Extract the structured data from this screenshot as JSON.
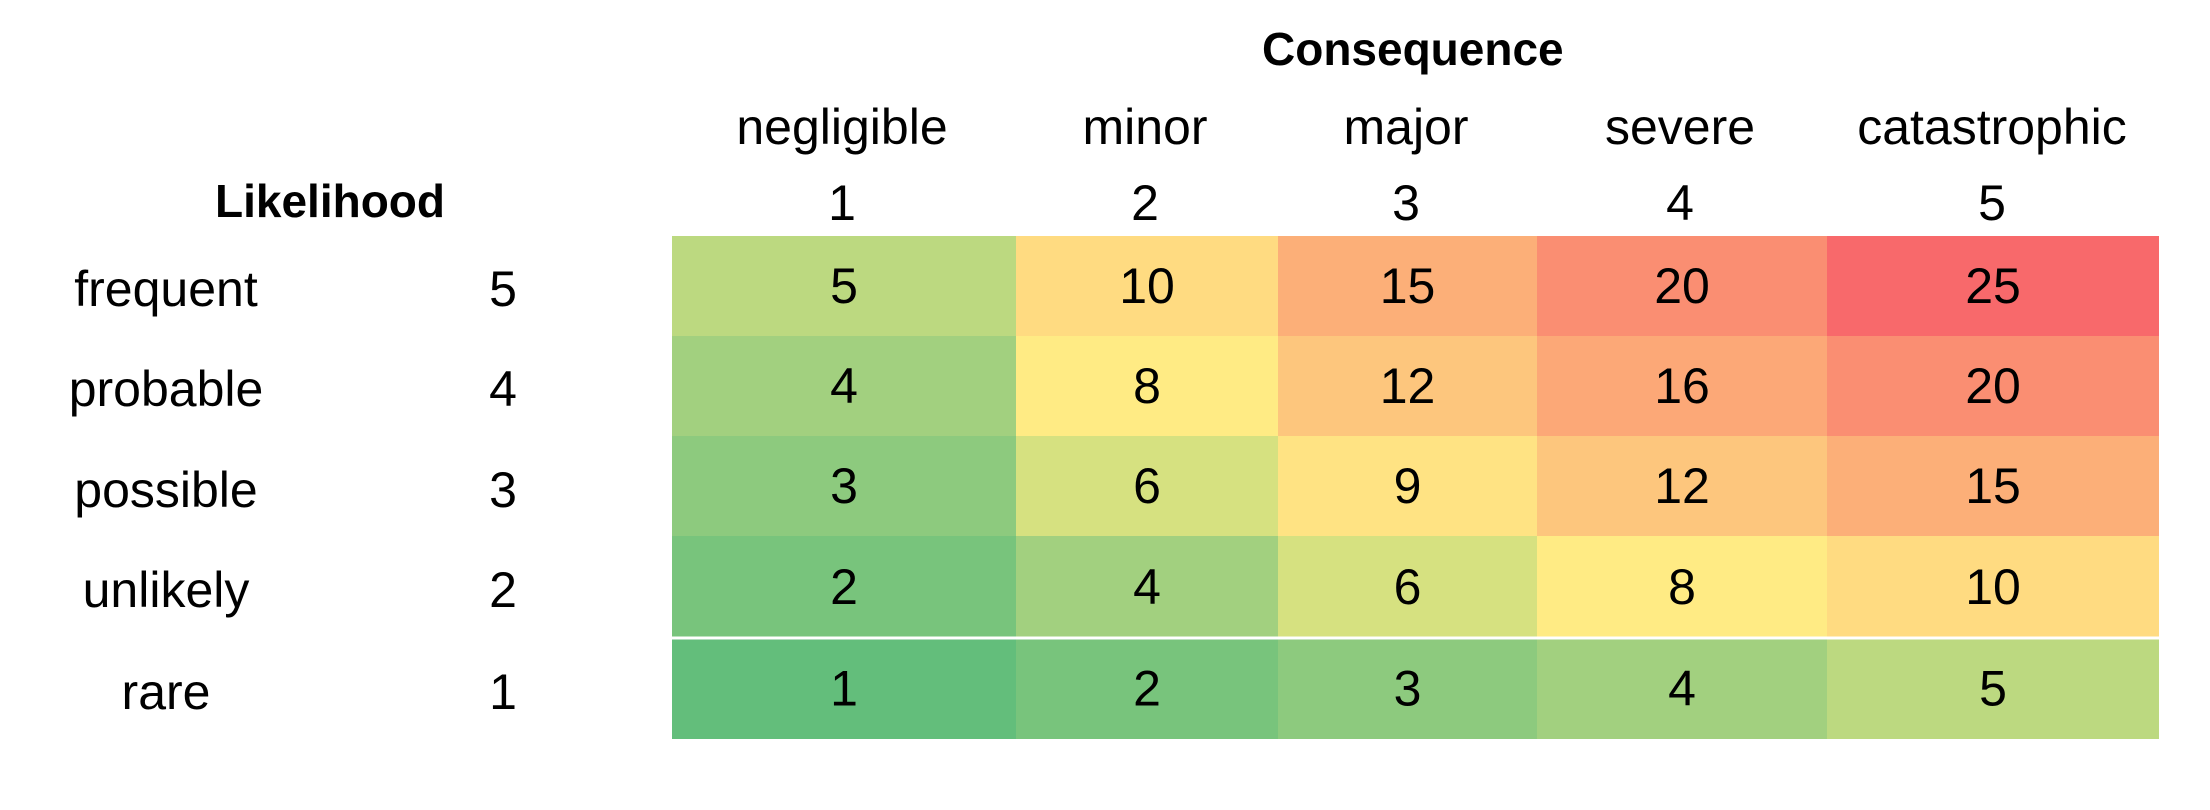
{
  "chart_data": {
    "type": "heatmap",
    "title": "Consequence",
    "row_title": "Likelihood",
    "columns": [
      {
        "name": "negligible",
        "value": "1"
      },
      {
        "name": "minor",
        "value": "2"
      },
      {
        "name": "major",
        "value": "3"
      },
      {
        "name": "severe",
        "value": "4"
      },
      {
        "name": "catastrophic",
        "value": "5"
      }
    ],
    "rows": [
      {
        "name": "frequent",
        "value": "5",
        "cells": [
          5,
          10,
          15,
          20,
          25
        ]
      },
      {
        "name": "probable",
        "value": "4",
        "cells": [
          4,
          8,
          12,
          16,
          20
        ]
      },
      {
        "name": "possible",
        "value": "3",
        "cells": [
          3,
          6,
          9,
          12,
          15
        ]
      },
      {
        "name": "unlikely",
        "value": "2",
        "cells": [
          2,
          4,
          6,
          8,
          10
        ]
      },
      {
        "name": "rare",
        "value": "1",
        "cells": [
          1,
          2,
          3,
          4,
          5
        ]
      }
    ],
    "color_scale": {
      "min": 1,
      "max": 25,
      "stops": [
        {
          "value": 1,
          "color": "#63BE7B"
        },
        {
          "value": 4,
          "color": "#A2D07F"
        },
        {
          "value": 6,
          "color": "#D6E180"
        },
        {
          "value": 8,
          "color": "#FFEB84"
        },
        {
          "value": 10,
          "color": "#FFDB81"
        },
        {
          "value": 12,
          "color": "#FDC67D"
        },
        {
          "value": 15,
          "color": "#FCAF78"
        },
        {
          "value": 20,
          "color": "#FA8E72"
        },
        {
          "value": 25,
          "color": "#F8696B"
        }
      ]
    }
  }
}
